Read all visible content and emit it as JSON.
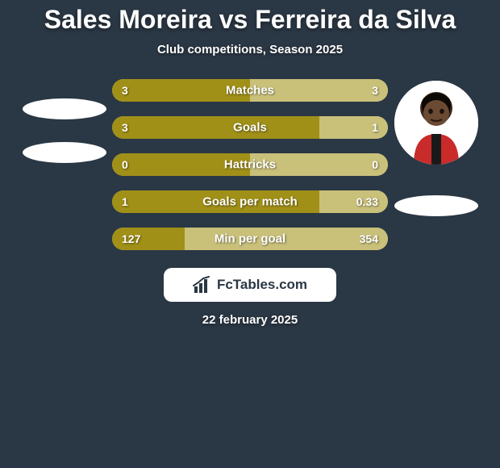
{
  "title": "Sales Moreira vs Ferreira da Silva",
  "subtitle": "Club competitions, Season 2025",
  "date": "22 february 2025",
  "logo_text": "FcTables.com",
  "players": {
    "left": {
      "name": "Sales Moreira",
      "has_photo": false
    },
    "right": {
      "name": "Ferreira da Silva",
      "has_photo": true
    }
  },
  "colors": {
    "background": "#2a3744",
    "bar_left": "#a09018",
    "bar_right": "#c9c07a",
    "text": "#ffffff",
    "logo_bg": "#ffffff",
    "logo_text": "#2a3744"
  },
  "bars": [
    {
      "label": "Matches",
      "left_value": "3",
      "right_value": "3",
      "left_pct": 50,
      "right_pct": 50
    },
    {
      "label": "Goals",
      "left_value": "3",
      "right_value": "1",
      "left_pct": 75,
      "right_pct": 25
    },
    {
      "label": "Hattricks",
      "left_value": "0",
      "right_value": "0",
      "left_pct": 50,
      "right_pct": 50
    },
    {
      "label": "Goals per match",
      "left_value": "1",
      "right_value": "0.33",
      "left_pct": 75.2,
      "right_pct": 24.8
    },
    {
      "label": "Min per goal",
      "left_value": "127",
      "right_value": "354",
      "left_pct": 26.4,
      "right_pct": 73.6
    }
  ],
  "bar_style": {
    "height": 28,
    "gap": 18,
    "border_radius": 14,
    "label_fontsize": 15,
    "value_fontsize": 14
  }
}
